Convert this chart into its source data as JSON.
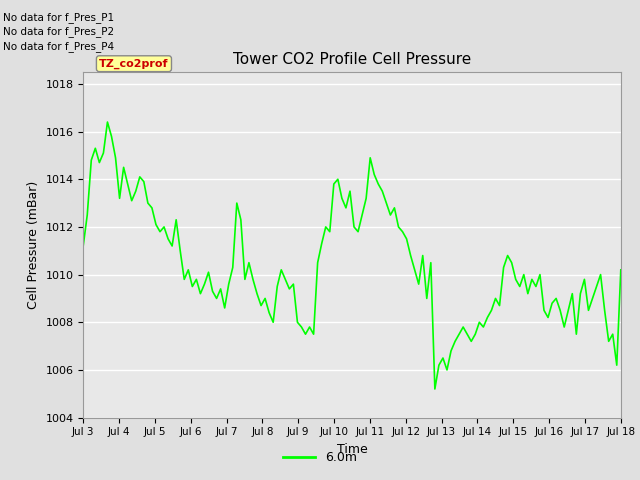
{
  "title": "Tower CO2 Profile Cell Pressure",
  "xlabel": "Time",
  "ylabel": "Cell Pressure (mBar)",
  "ylim": [
    1004,
    1018.5
  ],
  "xlim": [
    0,
    15
  ],
  "xtick_labels": [
    "Jul 3",
    "Jul 4",
    "Jul 5",
    "Jul 6",
    "Jul 7",
    "Jul 8",
    "Jul 9",
    "Jul 10",
    "Jul 11",
    "Jul 12",
    "Jul 13",
    "Jul 14",
    "Jul 15",
    "Jul 16",
    "Jul 17",
    "Jul 18"
  ],
  "line_color": "#00FF00",
  "line_width": 1.2,
  "legend_label": "6.0m",
  "legend_color": "#00FF00",
  "background_color": "#E0E0E0",
  "plot_bg_color": "#E8E8E8",
  "no_data_texts": [
    "No data for f_Pres_P1",
    "No data for f_Pres_P2",
    "No data for f_Pres_P4"
  ],
  "tooltip_text": "TZ_co2prof",
  "tooltip_color": "#CC0000",
  "tooltip_bg": "#FFFF99",
  "y_values": [
    1011.2,
    1012.5,
    1014.8,
    1015.3,
    1014.7,
    1015.1,
    1016.4,
    1015.8,
    1014.9,
    1013.2,
    1014.5,
    1013.8,
    1013.1,
    1013.5,
    1014.1,
    1013.9,
    1013.0,
    1012.8,
    1012.1,
    1011.8,
    1012.0,
    1011.5,
    1011.2,
    1012.3,
    1011.0,
    1009.8,
    1010.2,
    1009.5,
    1009.8,
    1009.2,
    1009.6,
    1010.1,
    1009.3,
    1009.0,
    1009.4,
    1008.6,
    1009.6,
    1010.3,
    1013.0,
    1012.3,
    1009.8,
    1010.5,
    1009.8,
    1009.2,
    1008.7,
    1009.0,
    1008.4,
    1008.0,
    1009.5,
    1010.2,
    1009.8,
    1009.4,
    1009.6,
    1008.0,
    1007.8,
    1007.5,
    1007.8,
    1007.5,
    1010.5,
    1011.3,
    1012.0,
    1011.8,
    1013.8,
    1014.0,
    1013.2,
    1012.8,
    1013.5,
    1012.0,
    1011.8,
    1012.5,
    1013.2,
    1014.9,
    1014.2,
    1013.8,
    1013.5,
    1013.0,
    1012.5,
    1012.8,
    1012.0,
    1011.8,
    1011.5,
    1010.8,
    1010.2,
    1009.6,
    1010.8,
    1009.0,
    1010.5,
    1005.2,
    1006.2,
    1006.5,
    1006.0,
    1006.8,
    1007.2,
    1007.5,
    1007.8,
    1007.5,
    1007.2,
    1007.5,
    1008.0,
    1007.8,
    1008.2,
    1008.5,
    1009.0,
    1008.7,
    1010.3,
    1010.8,
    1010.5,
    1009.8,
    1009.5,
    1010.0,
    1009.2,
    1009.8,
    1009.5,
    1010.0,
    1008.5,
    1008.2,
    1008.8,
    1009.0,
    1008.5,
    1007.8,
    1008.5,
    1009.2,
    1007.5,
    1009.2,
    1009.8,
    1008.5,
    1009.0,
    1009.5,
    1010.0,
    1008.5,
    1007.2,
    1007.5,
    1006.2,
    1010.2
  ]
}
